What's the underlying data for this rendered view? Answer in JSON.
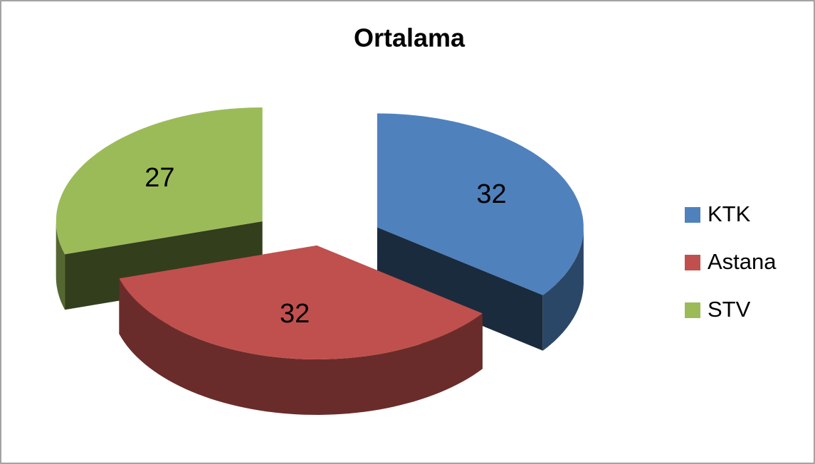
{
  "chart_data": {
    "type": "pie",
    "title": "Ortalama",
    "categories": [
      "KTK",
      "Astana",
      "STV"
    ],
    "values": [
      32,
      32,
      27
    ],
    "colors": [
      "#4f81bd",
      "#c0504d",
      "#9bbb59"
    ],
    "legend": "right"
  }
}
